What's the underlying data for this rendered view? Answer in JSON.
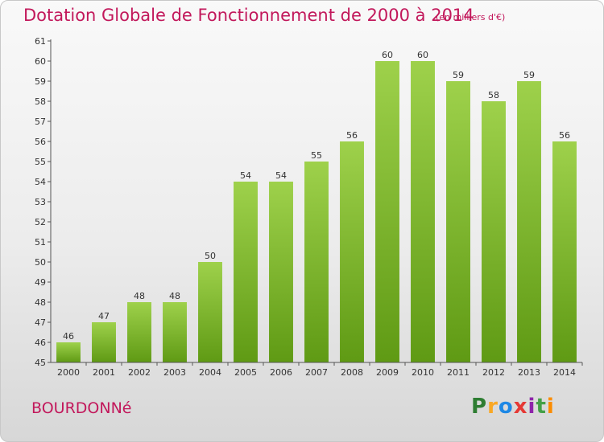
{
  "title": "Dotation Globale de Fonctionnement de 2000 à 2014",
  "subtitle": "(en milliers d'€)",
  "commune": "BOURDONNé",
  "logo": {
    "letters": [
      "P",
      "r",
      "o",
      "x",
      "i",
      "t",
      "i"
    ],
    "colors": [
      "#2e7d32",
      "#f9a825",
      "#1e88e5",
      "#e53935",
      "#8e24aa",
      "#43a047",
      "#fb8c00"
    ]
  },
  "colors": {
    "bar_light": "#9ed14b",
    "bar_dark": "#5f9a14",
    "accent": "#c2185b"
  },
  "chart_data": {
    "type": "bar",
    "title": "Dotation Globale de Fonctionnement de 2000 à 2014",
    "subtitle": "(en milliers d'€)",
    "categories": [
      "2000",
      "2001",
      "2002",
      "2003",
      "2004",
      "2005",
      "2006",
      "2007",
      "2008",
      "2009",
      "2010",
      "2011",
      "2012",
      "2013",
      "2014"
    ],
    "values": [
      46,
      47,
      48,
      48,
      50,
      54,
      54,
      55,
      56,
      60,
      60,
      59,
      58,
      59,
      56
    ],
    "ylim": [
      45,
      61
    ],
    "yticks": [
      45,
      46,
      47,
      48,
      49,
      50,
      51,
      52,
      53,
      54,
      55,
      56,
      57,
      58,
      59,
      60,
      61
    ],
    "grid": false,
    "legend": "none"
  }
}
